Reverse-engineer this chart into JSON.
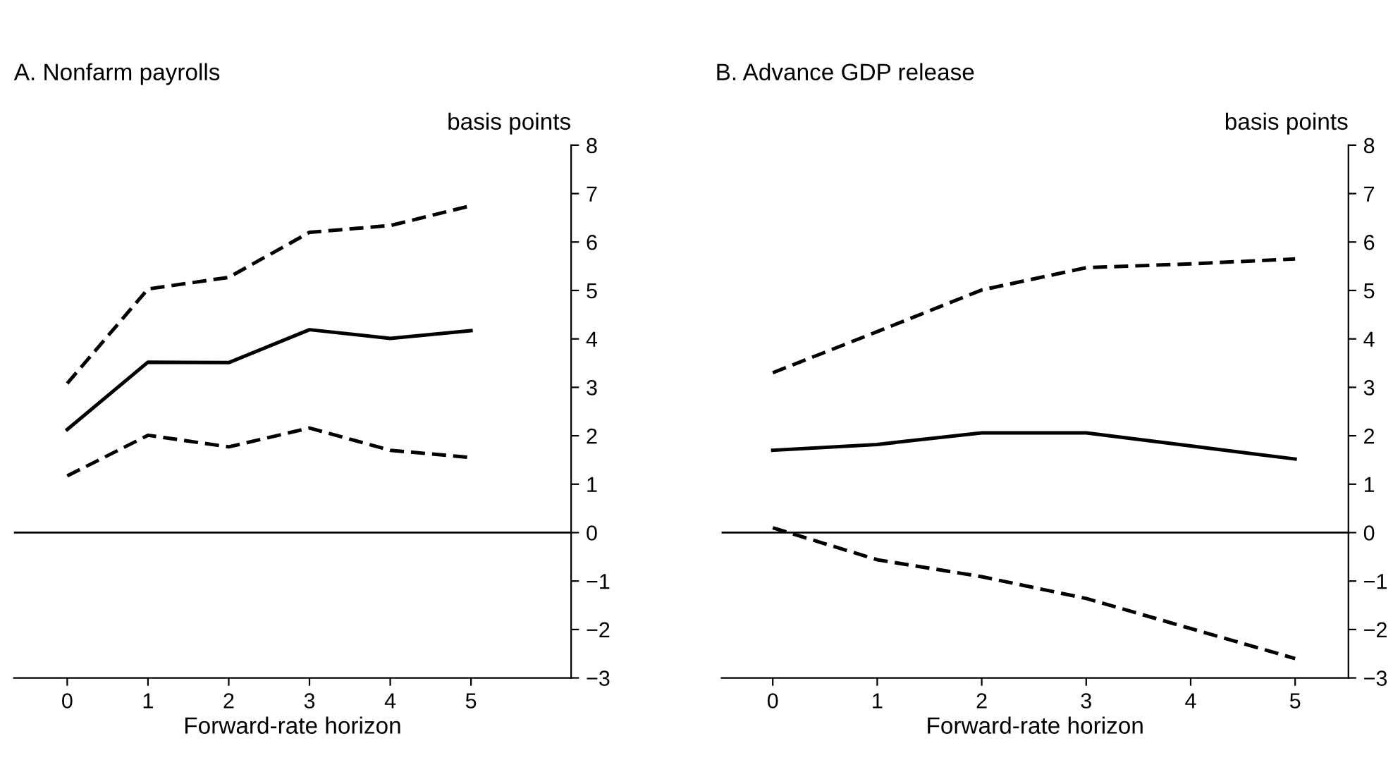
{
  "chart_data": [
    {
      "type": "line",
      "title": "A. Nonfarm payrolls",
      "xlabel": "Forward-rate horizon",
      "ylabel": "basis points",
      "x": [
        0,
        1,
        2,
        3,
        4,
        5
      ],
      "xlim": [
        -0.66,
        6.24
      ],
      "xticks": [
        0,
        1,
        2,
        3,
        4,
        5
      ],
      "ylim": [
        -3,
        8
      ],
      "yticks": [
        -3,
        -2,
        -1,
        0,
        1,
        2,
        3,
        4,
        5,
        6,
        7,
        8
      ],
      "grid": false,
      "series": [
        {
          "color": "#000000",
          "line_style": "dashed",
          "values": [
            3.08,
            5.03,
            5.27,
            6.2,
            6.34,
            6.75
          ]
        },
        {
          "color": "#000000",
          "line_style": "solid",
          "values": [
            2.13,
            3.52,
            3.51,
            4.19,
            4.01,
            4.17
          ]
        },
        {
          "color": "#000000",
          "line_style": "dashed",
          "values": [
            1.17,
            2.01,
            1.77,
            2.16,
            1.7,
            1.55
          ]
        }
      ],
      "ref_lines": [
        {
          "axis": "y",
          "value": 0,
          "color": "#000000"
        }
      ]
    },
    {
      "type": "line",
      "title": "B. Advance GDP release",
      "xlabel": "Forward-rate horizon",
      "ylabel": "basis points",
      "x": [
        0,
        1,
        2,
        3,
        4,
        5
      ],
      "xlim": [
        -0.49,
        5.51
      ],
      "xticks": [
        0,
        1,
        2,
        3,
        4,
        5
      ],
      "ylim": [
        -3,
        8
      ],
      "yticks": [
        -3,
        -2,
        -1,
        0,
        1,
        2,
        3,
        4,
        5,
        6,
        7,
        8
      ],
      "grid": false,
      "series": [
        {
          "color": "#000000",
          "line_style": "dashed",
          "values": [
            3.3,
            4.15,
            5.01,
            5.47,
            5.55,
            5.65
          ]
        },
        {
          "color": "#000000",
          "line_style": "solid",
          "values": [
            1.7,
            1.82,
            2.06,
            2.06,
            1.79,
            1.52
          ]
        },
        {
          "color": "#000000",
          "line_style": "dashed",
          "values": [
            0.1,
            -0.56,
            -0.91,
            -1.36,
            -1.98,
            -2.6
          ]
        }
      ],
      "ref_lines": [
        {
          "axis": "y",
          "value": 0,
          "color": "#000000"
        }
      ]
    }
  ]
}
